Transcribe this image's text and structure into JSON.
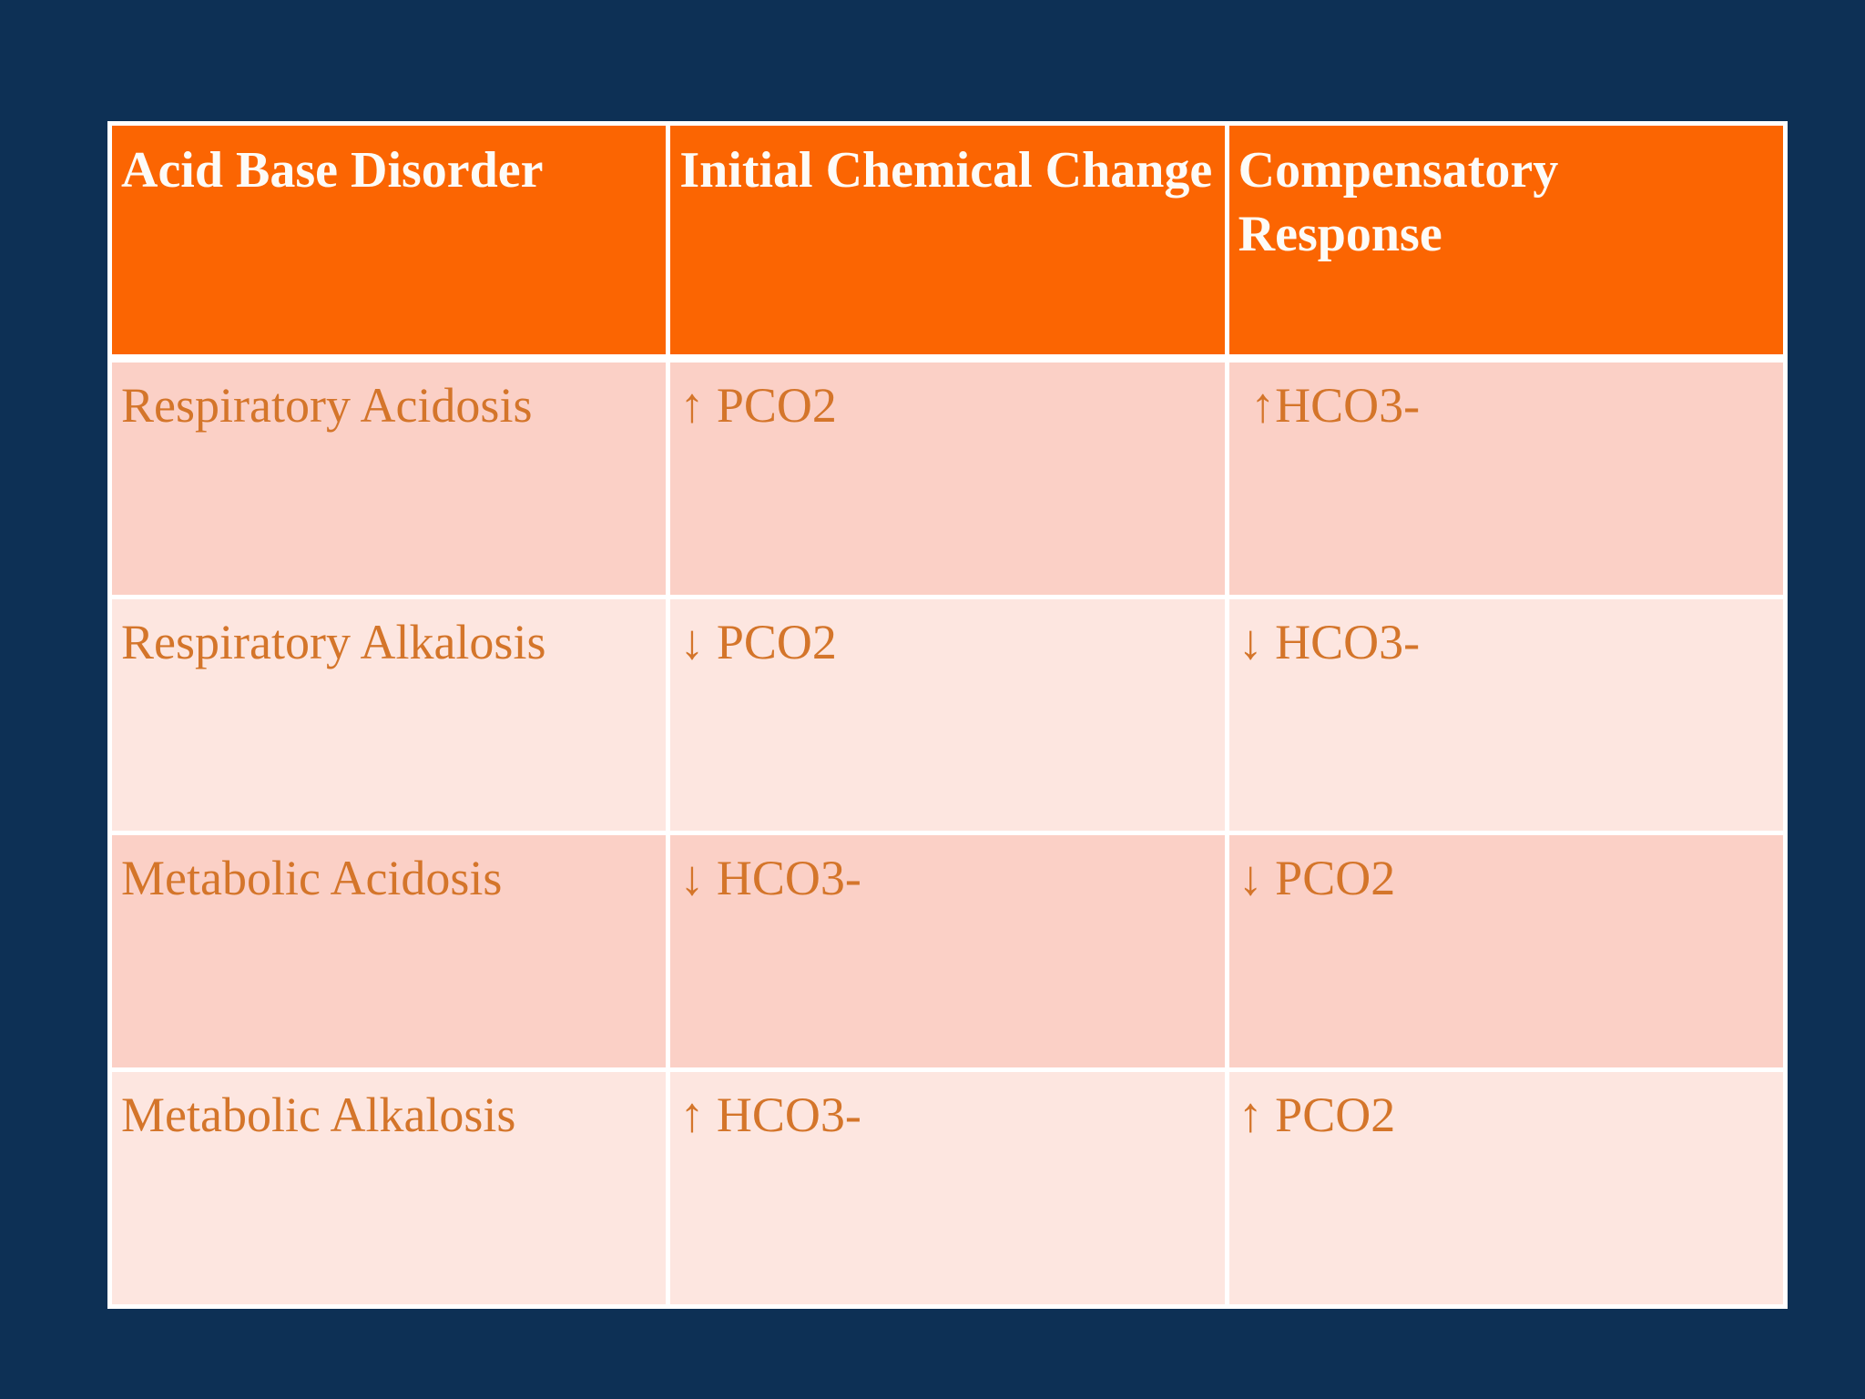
{
  "slide": {
    "background_color": "#0D3055",
    "table": {
      "title_semantic": "acid-base-disorders-table",
      "header_bg_color": "#FB6502",
      "header_text_color": "#FFFFFF",
      "row_odd_bg_color": "#FBD0C6",
      "row_even_bg_color": "#FDE6E0",
      "body_text_color": "#D4752A",
      "gridline_color": "#FFFFFF",
      "headers": [
        "Acid Base Disorder",
        "Initial Chemical Change",
        "Compensatory Response"
      ],
      "rows": [
        {
          "disorder": "Respiratory Acidosis",
          "initial_change": "↑ PCO2",
          "compensatory_response": " ↑HCO3-"
        },
        {
          "disorder": "Respiratory Alkalosis",
          "initial_change": "↓ PCO2",
          "compensatory_response": "↓ HCO3-"
        },
        {
          "disorder": "Metabolic Acidosis",
          "initial_change": "↓ HCO3-",
          "compensatory_response": "↓ PCO2"
        },
        {
          "disorder": "Metabolic Alkalosis",
          "initial_change": "↑ HCO3-",
          "compensatory_response": "↑ PCO2"
        }
      ]
    }
  }
}
